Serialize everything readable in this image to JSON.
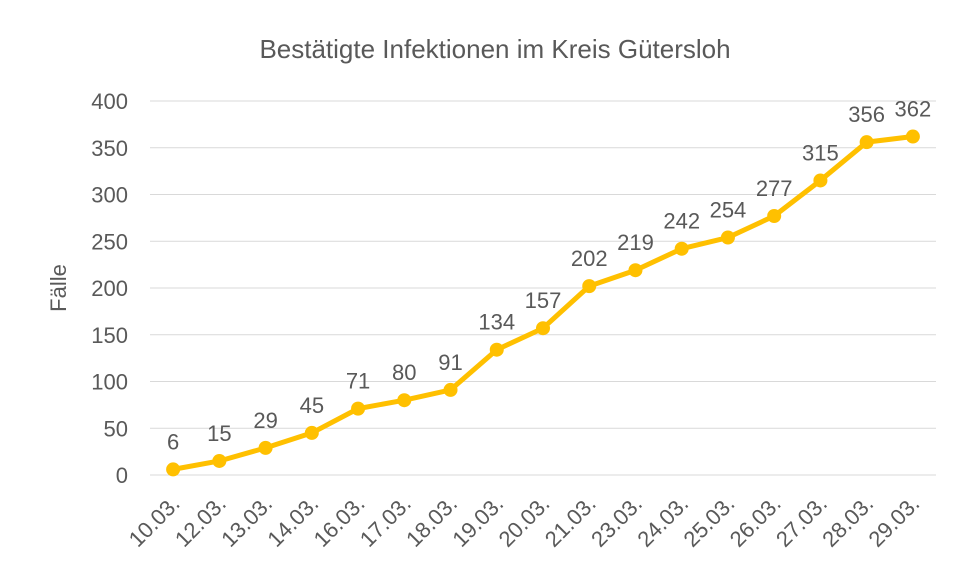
{
  "chart_data": {
    "type": "line",
    "title": "Bestätigte Infektionen im Kreis Gütersloh",
    "y_label": "Fälle",
    "categories": [
      "10.03.",
      "12.03.",
      "13.03.",
      "14.03.",
      "16.03.",
      "17.03.",
      "18.03.",
      "19.03.",
      "20.03.",
      "21.03.",
      "23.03.",
      "24.03.",
      "25.03.",
      "26.03.",
      "27.03.",
      "28.03.",
      "29.03."
    ],
    "series": [
      {
        "name": "Fälle",
        "color": "#ffc000",
        "values": [
          6,
          15,
          29,
          45,
          71,
          80,
          91,
          134,
          157,
          202,
          219,
          242,
          254,
          277,
          315,
          356,
          362
        ]
      }
    ],
    "ylim": [
      0,
      400
    ],
    "yticks": [
      0,
      50,
      100,
      150,
      200,
      250,
      300,
      350,
      400
    ],
    "grid": true,
    "data_labels": true
  }
}
